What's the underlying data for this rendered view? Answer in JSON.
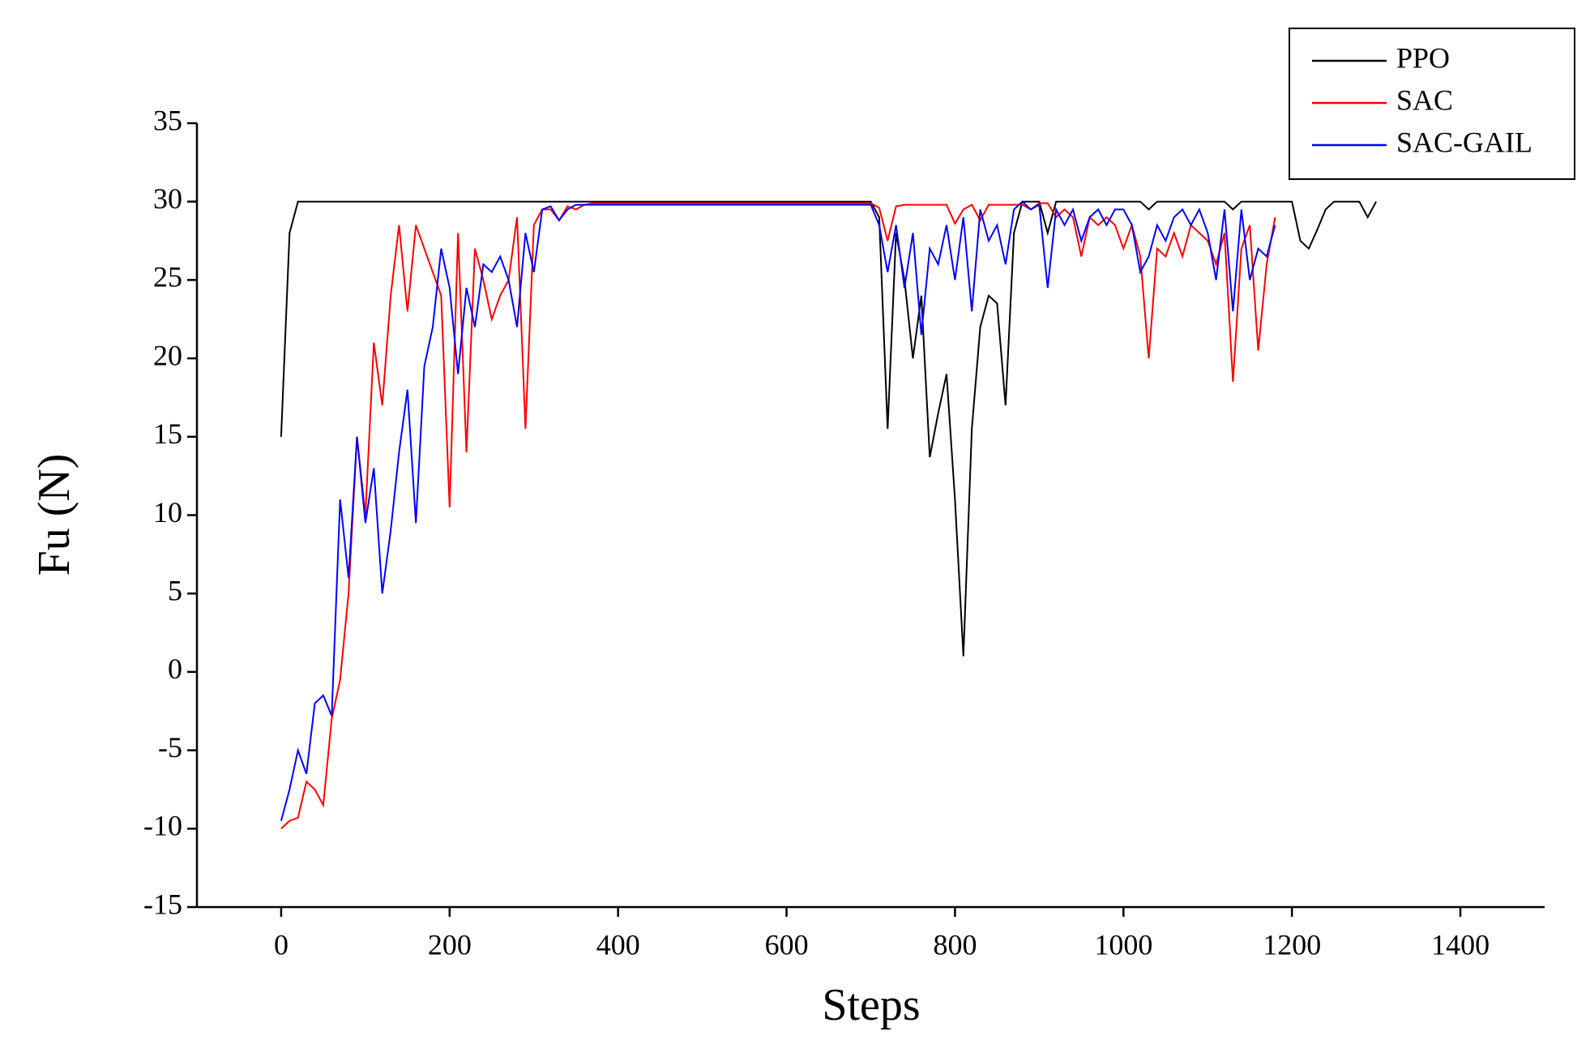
{
  "chart_data": {
    "type": "line",
    "x_label": "Steps",
    "y_label": "Fu (N)",
    "x": [
      0,
      10,
      20,
      30,
      40,
      50,
      60,
      70,
      80,
      90,
      100,
      110,
      120,
      130,
      140,
      150,
      160,
      170,
      180,
      190,
      200,
      210,
      220,
      230,
      240,
      250,
      260,
      270,
      280,
      290,
      300,
      310,
      320,
      330,
      340,
      350,
      360,
      370,
      380,
      390,
      400,
      410,
      420,
      430,
      440,
      450,
      460,
      470,
      480,
      490,
      500,
      510,
      520,
      530,
      540,
      550,
      560,
      570,
      580,
      590,
      600,
      610,
      620,
      630,
      640,
      650,
      660,
      670,
      680,
      690,
      700,
      710,
      720,
      730,
      740,
      750,
      760,
      770,
      780,
      790,
      800,
      810,
      820,
      830,
      840,
      850,
      860,
      870,
      880,
      890,
      900,
      910,
      920,
      930,
      940,
      950,
      960,
      970,
      980,
      990,
      1000,
      1010,
      1020,
      1030,
      1040,
      1050,
      1060,
      1070,
      1080,
      1090,
      1100,
      1110,
      1120,
      1130,
      1140,
      1150,
      1160,
      1170,
      1180,
      1190,
      1200,
      1210,
      1220,
      1230,
      1240,
      1250,
      1260,
      1270,
      1280,
      1290,
      1300
    ],
    "series": [
      {
        "name": "PPO",
        "color": "#000000",
        "values": [
          15,
          28,
          30,
          30,
          30,
          30,
          30,
          30,
          30,
          30,
          30,
          30,
          30,
          30,
          30,
          30,
          30,
          30,
          30,
          30,
          30,
          30,
          30,
          30,
          30,
          30,
          30,
          30,
          30,
          30,
          30,
          30,
          30,
          30,
          30,
          30,
          30,
          30,
          30,
          30,
          30,
          30,
          30,
          30,
          30,
          30,
          30,
          30,
          30,
          30,
          30,
          30,
          30,
          30,
          30,
          30,
          30,
          30,
          30,
          30,
          30,
          30,
          30,
          30,
          30,
          30,
          30,
          30,
          30,
          30,
          30,
          29,
          15.5,
          28,
          25,
          20,
          24,
          13.7,
          16.5,
          19,
          11,
          1,
          15.5,
          22,
          24,
          23.5,
          17,
          28,
          30,
          30,
          30,
          28,
          30,
          30,
          30,
          30,
          30,
          30,
          30,
          30,
          30,
          30,
          30,
          29.5,
          30,
          30,
          30,
          30,
          30,
          30,
          30,
          30,
          30,
          29.5,
          30,
          30,
          30,
          30,
          30,
          30,
          30,
          27.5,
          27,
          28.2,
          29.5,
          30,
          30,
          30,
          30,
          29,
          30
        ]
      },
      {
        "name": "SAC",
        "color": "#ff0000",
        "values": [
          -10,
          -9.5,
          -9.3,
          -7,
          -7.5,
          -8.5,
          -3,
          -0.5,
          5,
          15,
          10,
          21,
          17,
          24,
          28.5,
          23,
          28.5,
          27,
          25.5,
          24,
          10.5,
          28,
          14,
          27,
          25,
          22.5,
          24,
          25,
          29,
          15.5,
          28.5,
          29.5,
          29.5,
          28.8,
          29.7,
          29.5,
          29.8,
          29.9,
          29.9,
          29.9,
          29.9,
          29.9,
          29.9,
          29.9,
          29.9,
          29.9,
          29.9,
          29.9,
          29.9,
          29.9,
          29.9,
          29.9,
          29.9,
          29.9,
          29.9,
          29.9,
          29.9,
          29.9,
          29.9,
          29.9,
          29.9,
          29.9,
          29.9,
          29.9,
          29.9,
          29.9,
          29.9,
          29.9,
          29.9,
          29.9,
          29.9,
          29.6,
          27.5,
          29.7,
          29.8,
          29.8,
          29.8,
          29.8,
          29.8,
          29.8,
          28.6,
          29.5,
          29.8,
          28.8,
          29.8,
          29.8,
          29.8,
          29.8,
          29.8,
          29.5,
          29.9,
          29.9,
          29,
          29.5,
          29,
          26.5,
          29,
          28.5,
          29,
          28.5,
          27,
          28.5,
          26.5,
          20,
          27,
          26.5,
          28,
          26.5,
          28.5,
          28,
          27.5,
          26,
          28,
          18.5,
          27,
          28.5,
          20.5,
          26,
          29,
          null,
          null,
          null,
          null,
          null,
          null,
          null,
          null,
          null,
          null,
          null,
          null
        ]
      },
      {
        "name": "SAC-GAIL",
        "color": "#0000ff",
        "values": [
          -9.5,
          -7.5,
          -5,
          -6.5,
          -2,
          -1.5,
          -2.8,
          11,
          6,
          15,
          9.5,
          13,
          5,
          9,
          14,
          18,
          9.5,
          19.5,
          22,
          27,
          24.5,
          19,
          24.5,
          22,
          26,
          25.5,
          26.5,
          25,
          22,
          28,
          25.5,
          29.5,
          29.7,
          28.8,
          29.5,
          29.8,
          29.8,
          29.8,
          29.8,
          29.8,
          29.8,
          29.8,
          29.8,
          29.8,
          29.8,
          29.8,
          29.8,
          29.8,
          29.8,
          29.8,
          29.8,
          29.8,
          29.8,
          29.8,
          29.8,
          29.8,
          29.8,
          29.8,
          29.8,
          29.8,
          29.8,
          29.8,
          29.8,
          29.8,
          29.8,
          29.8,
          29.8,
          29.8,
          29.8,
          29.8,
          29.8,
          28.5,
          25.5,
          28.5,
          24.5,
          28,
          21.5,
          27,
          26,
          28.5,
          25,
          29,
          23,
          29.5,
          27.5,
          28.5,
          26,
          29.5,
          30,
          29.5,
          29.8,
          24.5,
          29.5,
          28.5,
          29.5,
          27.5,
          29,
          29.5,
          28.5,
          29.5,
          29.5,
          28.5,
          25.5,
          26.5,
          28.5,
          27.5,
          29,
          29.5,
          28.5,
          29.5,
          28,
          25,
          29.5,
          23,
          29.5,
          25,
          27,
          26.5,
          28.5,
          null,
          null,
          null,
          null,
          null,
          null,
          null,
          null,
          null,
          null,
          null,
          null
        ]
      }
    ],
    "xlim": [
      -100,
      1500
    ],
    "xticks": [
      0,
      200,
      400,
      600,
      800,
      1000,
      1200,
      1400
    ],
    "ylim": [
      -15,
      35
    ],
    "yticks": [
      -15,
      -10,
      -5,
      0,
      5,
      10,
      15,
      20,
      25,
      30,
      35
    ],
    "legend": "top-right"
  }
}
